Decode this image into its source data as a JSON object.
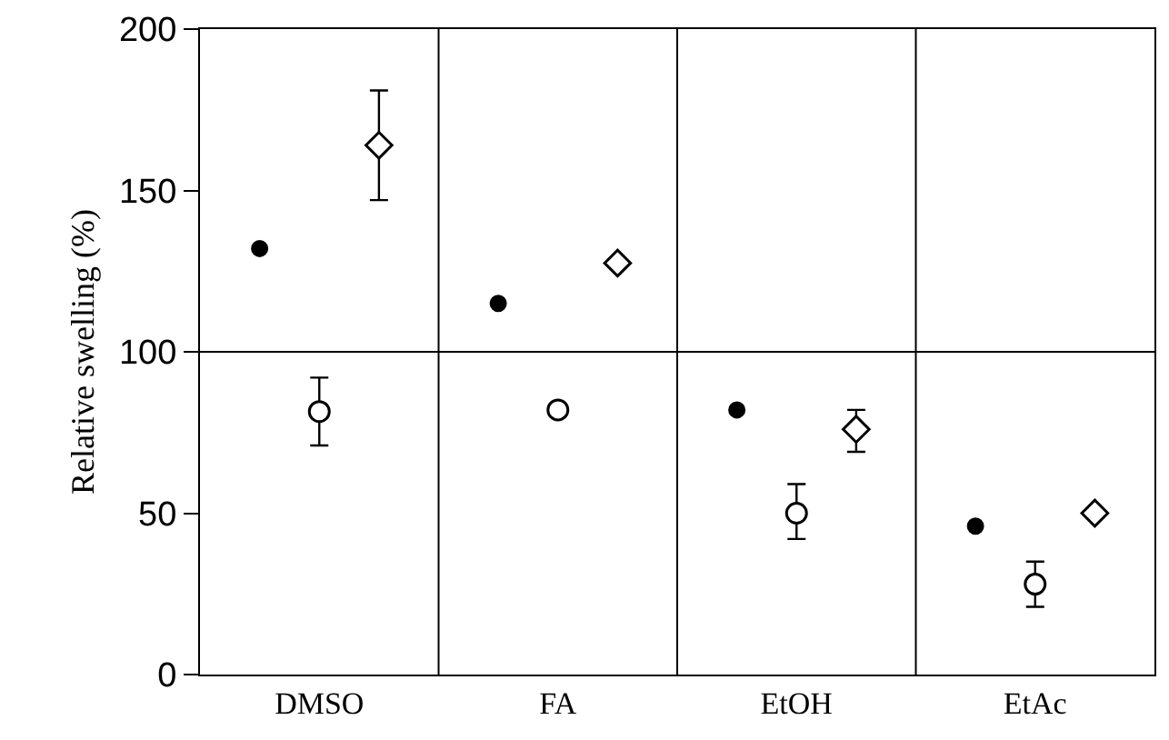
{
  "chart_data": {
    "type": "scatter",
    "ylabel": "Relative swelling (%)",
    "categories": [
      "DMSO",
      "FA",
      "EtOH",
      "EtAc"
    ],
    "series": [
      {
        "color": "#000000",
        "marker": "circle",
        "values": [
          132,
          115,
          82,
          46
        ]
      },
      {
        "color": "#000000",
        "marker": "circle",
        "values": [
          81.5,
          82,
          50,
          28
        ],
        "errors": [
          [
            71,
            92
          ],
          null,
          [
            42,
            59
          ],
          [
            21,
            35
          ]
        ]
      },
      {
        "color": "#000000",
        "marker": "diamond",
        "values": [
          164,
          127.5,
          76,
          50
        ],
        "errors": [
          [
            147,
            181
          ],
          null,
          [
            69,
            82
          ],
          null
        ]
      }
    ],
    "ylim": [
      0,
      200
    ],
    "yticks": [
      0,
      50,
      100,
      150,
      200
    ],
    "grid": "x",
    "ref_lines": [
      {
        "axis": "y",
        "value": 100,
        "color": "#000000"
      }
    ]
  }
}
